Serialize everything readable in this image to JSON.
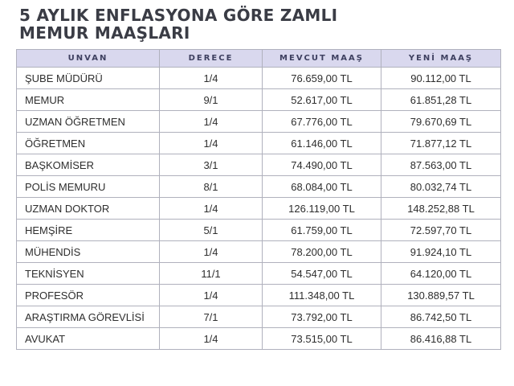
{
  "header": {
    "title_line1": "5 AYLIK ENFLASYONA GÖRE ZAMLI",
    "title_line2": "MEMUR MAAŞLARI"
  },
  "table": {
    "columns": [
      "UNVAN",
      "DERECE",
      "MEVCUT MAAŞ",
      "YENİ MAAŞ"
    ],
    "rows": [
      [
        "ŞUBE MÜDÜRÜ",
        "1/4",
        "76.659,00 TL",
        "90.112,00 TL"
      ],
      [
        "MEMUR",
        "9/1",
        "52.617,00 TL",
        "61.851,28 TL"
      ],
      [
        "UZMAN ÖĞRETMEN",
        "1/4",
        "67.776,00 TL",
        "79.670,69 TL"
      ],
      [
        "ÖĞRETMEN",
        "1/4",
        "61.146,00 TL",
        "71.877,12 TL"
      ],
      [
        "BAŞKOMİSER",
        "3/1",
        "74.490,00 TL",
        "87.563,00 TL"
      ],
      [
        "POLİS MEMURU",
        "8/1",
        "68.084,00 TL",
        "80.032,74 TL"
      ],
      [
        "UZMAN DOKTOR",
        "1/4",
        "126.119,00 TL",
        "148.252,88 TL"
      ],
      [
        "HEMŞİRE",
        "5/1",
        "61.759,00 TL",
        "72.597,70 TL"
      ],
      [
        "MÜHENDİS",
        "1/4",
        "78.200,00 TL",
        "91.924,10 TL"
      ],
      [
        "TEKNİSYEN",
        "11/1",
        "54.547,00 TL",
        "64.120,00 TL"
      ],
      [
        "PROFESÖR",
        "1/4",
        "111.348,00 TL",
        "130.889,57 TL"
      ],
      [
        "ARAŞTIRMA GÖREVLİSİ",
        "7/1",
        "73.792,00 TL",
        "86.742,50 TL"
      ],
      [
        "AVUKAT",
        "1/4",
        "73.515,00 TL",
        "86.416,88 TL"
      ]
    ]
  },
  "colors": {
    "header_bg": "#d9d8ee",
    "header_text": "#3e4060",
    "border": "#b0b1bd",
    "title_text": "#3a3c45"
  }
}
